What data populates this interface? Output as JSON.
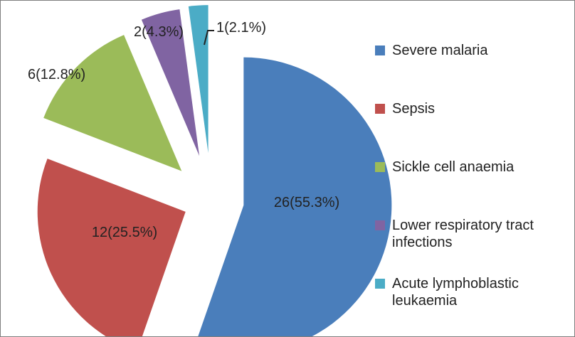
{
  "chart_data": {
    "type": "pie",
    "categories": [
      "Severe malaria",
      "Sepsis",
      "Sickle cell anaemia",
      "Lower respiratory tract infections",
      "Acute lymphoblastic leukaemia"
    ],
    "values": [
      26,
      12,
      6,
      2,
      1
    ],
    "percentages": [
      55.3,
      25.5,
      12.8,
      4.3,
      2.1
    ],
    "data_labels": [
      "26(55.3%)",
      "12(25.5%)",
      "6(12.8%)",
      "2(4.3%)",
      "1(2.1%)"
    ],
    "colors": [
      "#4a7ebb",
      "#c0504d",
      "#9bbb59",
      "#8064a2",
      "#4bacc6"
    ],
    "exploded": true,
    "legend_position": "right"
  },
  "legend": [
    {
      "label": "Severe malaria",
      "color": "#4a7ebb"
    },
    {
      "label": "Sepsis",
      "color": "#c0504d"
    },
    {
      "label": "Sickle cell anaemia",
      "color": "#9bbb59"
    },
    {
      "label": "Lower respiratory tract infections",
      "color": "#8064a2"
    },
    {
      "label": "Acute lymphoblastic leukaemia",
      "color": "#4bacc6"
    }
  ]
}
